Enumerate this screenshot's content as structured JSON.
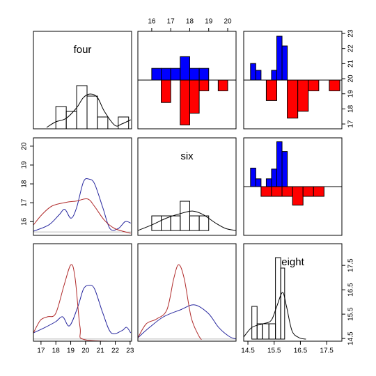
{
  "chart_data": [
    {
      "type": "histogram",
      "title": "four",
      "xlim": [
        16.49,
        23.1
      ],
      "ylim": [
        0,
        1.4
      ],
      "color": "#000000",
      "bins": [
        18,
        18.7,
        19.4,
        20.1,
        20.8,
        21.5,
        22.2,
        22.9
      ],
      "values": [
        0.32,
        0.25,
        0.62,
        0.47,
        0.17,
        0,
        0.17
      ],
      "density": {
        "x": [
          17.38,
          17.99,
          18.69,
          19.39,
          19.86,
          20.33,
          20.8,
          21.27,
          21.97,
          22.44,
          23.04
        ],
        "values": [
          0.02,
          0.1,
          0.15,
          0.3,
          0.45,
          0.5,
          0.45,
          0.25,
          0.05,
          0.07,
          0.13
        ]
      }
    },
    {
      "type": "mirror-bar",
      "xlim": [
        15.27,
        20.44
      ],
      "ylim": [
        -5,
        5
      ],
      "xaxis": "top",
      "xticks": [
        16,
        17,
        18,
        19,
        20
      ],
      "series": [
        {
          "color": "#0000ff",
          "side": "up",
          "bins": [
            16,
            16.5,
            17,
            17.5,
            18,
            18.5,
            19,
            19.5,
            20
          ],
          "values": [
            1.2,
            1.2,
            1.2,
            2.4,
            1.2,
            1.2,
            0,
            0
          ]
        },
        {
          "color": "#ff0000",
          "side": "down",
          "bins": [
            16,
            16.5,
            17,
            17.5,
            18,
            18.5,
            19,
            19.5,
            20
          ],
          "values": [
            0,
            2.3,
            0,
            4.6,
            3.4,
            1.1,
            0,
            1.1
          ]
        }
      ]
    },
    {
      "type": "mirror-bar",
      "xlim": [
        14.34,
        18.08
      ],
      "ylim": [
        -5,
        5
      ],
      "y2lim": [
        16.68,
        23.14
      ],
      "y2ticks": [
        17,
        18,
        19,
        20,
        21,
        22,
        23
      ],
      "series": [
        {
          "color": "#0000ff",
          "side": "up",
          "bins": [
            14.6,
            14.8,
            15.0,
            15.2,
            15.4,
            15.6,
            15.8,
            16.0
          ],
          "values": [
            1.7,
            1,
            0,
            0,
            1,
            4.5,
            3.5
          ]
        },
        {
          "color": "#ff0000",
          "side": "down",
          "bins": [
            15.2,
            15.6,
            16.0,
            16.4,
            16.8,
            17.2,
            17.6,
            18.0
          ],
          "values": [
            2.1,
            0,
            3.9,
            3.2,
            1.1,
            0,
            1.1
          ]
        }
      ]
    },
    {
      "type": "density",
      "xlim": [
        16.49,
        23.1
      ],
      "ylim": [
        15.27,
        20.44
      ],
      "yaxis": "left",
      "yticks": [
        16,
        17,
        18,
        19,
        20
      ],
      "baseline": 15.45,
      "series": [
        {
          "color": "#26269e",
          "x": [
            16.49,
            17.52,
            18.22,
            18.6,
            19.02,
            19.39,
            19.86,
            20.24,
            20.61,
            21.17,
            21.64,
            22.2,
            22.67,
            23.04
          ],
          "values": [
            15.49,
            15.82,
            16.36,
            16.65,
            16.18,
            16.72,
            18.11,
            18.25,
            18.0,
            16.72,
            15.63,
            15.63,
            16.0,
            15.92
          ]
        },
        {
          "color": "#b02a2a",
          "x": [
            16.49,
            17.05,
            17.75,
            18.69,
            19.39,
            20.14,
            20.61,
            21.27,
            21.97,
            23.04
          ],
          "values": [
            15.82,
            16.36,
            16.83,
            17.02,
            17.09,
            17.2,
            16.8,
            16.07,
            15.63,
            15.38
          ]
        }
      ]
    },
    {
      "type": "histogram",
      "title": "six",
      "xlim": [
        15.27,
        20.44
      ],
      "ylim": [
        -0.33,
        6.33
      ],
      "color": "#000000",
      "bins": [
        16,
        16.5,
        17,
        17.5,
        18,
        18.5,
        19
      ],
      "values": [
        1,
        1,
        1,
        2,
        1,
        1
      ],
      "density": {
        "x": [
          15.27,
          16,
          16.8,
          17.6,
          18.15,
          18.69,
          19.35,
          19.89,
          20.44
        ],
        "values": [
          0,
          0.38,
          0.86,
          1.19,
          1.33,
          1.1,
          0.52,
          0.14,
          0
        ]
      }
    },
    {
      "type": "mirror-bar",
      "xlim": [
        14.34,
        18.08
      ],
      "ylim": [
        -5,
        5
      ],
      "series": [
        {
          "color": "#0000ff",
          "side": "up",
          "bins": [
            14.6,
            14.8,
            15.0,
            15.2,
            15.4,
            15.6,
            15.8,
            16.0
          ],
          "values": [
            1.9,
            0.8,
            0,
            0.8,
            1.8,
            4.6,
            3.6
          ]
        },
        {
          "color": "#ff0000",
          "side": "down",
          "bins": [
            15.0,
            15.4,
            15.8,
            16.2,
            16.6,
            17.0,
            17.4
          ],
          "values": [
            1,
            1,
            1,
            1.9,
            1,
            1
          ]
        }
      ]
    },
    {
      "type": "density",
      "xlim": [
        16.49,
        23.1
      ],
      "ylim": [
        14.39,
        18.39
      ],
      "xaxis": "bottom",
      "xticks": [
        17,
        18,
        19,
        20,
        21,
        22,
        23
      ],
      "baseline": 14.48,
      "series": [
        {
          "color": "#26269e",
          "x": [
            16.49,
            17.29,
            17.99,
            18.46,
            18.92,
            19.49,
            19.86,
            20.24,
            20.61,
            21.17,
            21.73,
            22.44,
            22.76,
            23.04
          ],
          "values": [
            14.73,
            14.96,
            15.19,
            15.39,
            15.02,
            15.82,
            16.53,
            16.68,
            16.53,
            15.53,
            14.73,
            14.82,
            14.96,
            14.73
          ]
        },
        {
          "color": "#b02a2a",
          "x": [
            16.49,
            16.96,
            17.43,
            17.99,
            18.55,
            19.02,
            19.3,
            19.63,
            19.95,
            23.04
          ],
          "values": [
            14.73,
            15.25,
            15.39,
            15.53,
            16.68,
            17.53,
            16.96,
            14.96,
            14.45,
            14.39
          ]
        }
      ]
    },
    {
      "type": "density",
      "xlim": [
        15.27,
        20.44
      ],
      "ylim": [
        14.39,
        18.39
      ],
      "baseline": 14.48,
      "series": [
        {
          "color": "#26269e",
          "x": [
            15.27,
            15.89,
            16.62,
            17.52,
            18.25,
            18.98,
            19.52,
            20.07,
            20.44
          ],
          "values": [
            14.53,
            14.96,
            15.39,
            15.68,
            15.88,
            15.53,
            14.96,
            14.59,
            14.48
          ]
        },
        {
          "color": "#b02a2a",
          "x": [
            15.27,
            15.71,
            16.25,
            16.8,
            17.16,
            17.42,
            17.71,
            18.07,
            18.43,
            18.62
          ],
          "values": [
            14.53,
            15.1,
            15.3,
            15.68,
            16.96,
            17.53,
            16.96,
            15.39,
            14.68,
            14.45
          ]
        }
      ]
    },
    {
      "type": "histogram",
      "title": "eight",
      "xlim": [
        14.34,
        18.08
      ],
      "ylim": [
        -0.3,
        13.7
      ],
      "color": "#000000",
      "xaxis": "bottom",
      "xticks": [
        14.5,
        15.5,
        16.5,
        17.5
      ],
      "y2lim": [
        14.39,
        18.39
      ],
      "y2ticks": [
        14.5,
        15.5,
        16.5,
        17.5
      ],
      "bins": [
        14.65,
        14.85,
        15.05,
        15.3,
        15.55,
        15.75,
        15.9
      ],
      "values": [
        4.7,
        2.2,
        2.2,
        2.2,
        11.7,
        10.2
      ],
      "density": {
        "x": [
          14.34,
          14.66,
          15.08,
          15.39,
          15.6,
          15.82,
          15.97,
          16.18,
          16.45,
          16.71
        ],
        "values": [
          0.3,
          1.7,
          2.2,
          2.7,
          4.7,
          6.7,
          4.7,
          1.2,
          0.2,
          0
        ]
      }
    }
  ]
}
